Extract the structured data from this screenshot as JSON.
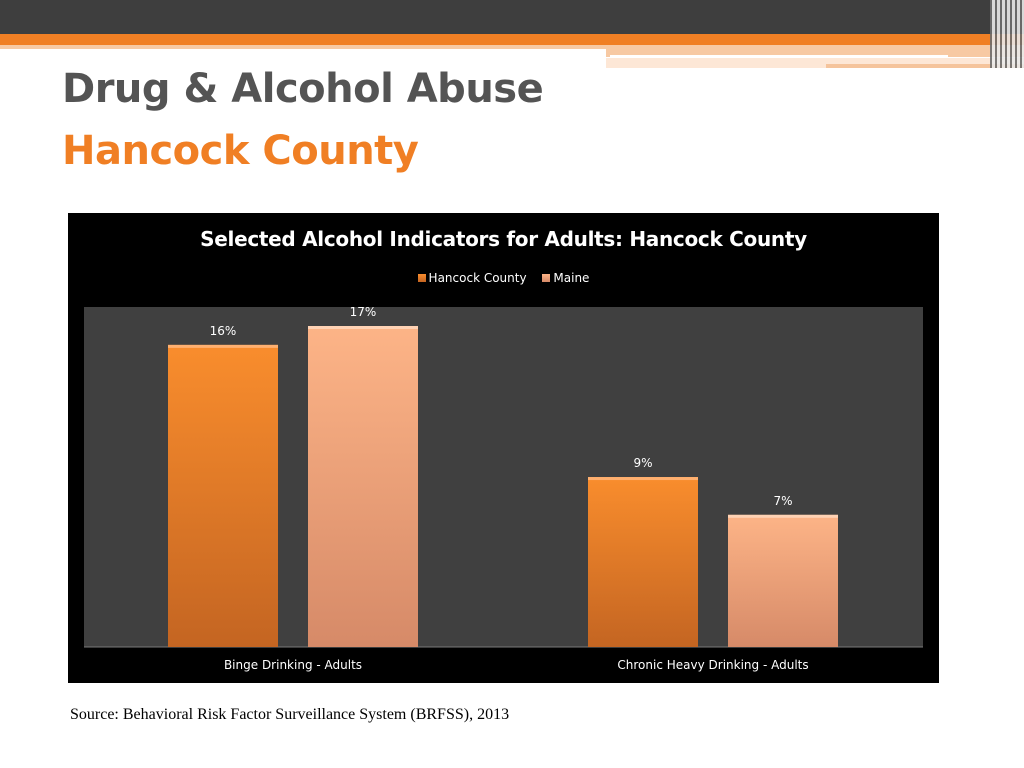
{
  "slide": {
    "title": "Drug & Alcohol Abuse",
    "subtitle": "Hancock County",
    "source": "Source: Behavioral Risk Factor Surveillance System  (BRFSS), 2013"
  },
  "colors": {
    "accent": "#f07f24",
    "header_bar": "#3e3e3e",
    "title_gray": "#545454",
    "plot_area": "#404040",
    "hancock": "#f18a2e",
    "maine": "#f7a574"
  },
  "chart_data": {
    "type": "bar",
    "title": "Selected Alcohol Indicators for Adults: Hancock County",
    "categories": [
      "Binge Drinking - Adults",
      "Chronic Heavy Drinking - Adults"
    ],
    "series": [
      {
        "name": "Hancock County",
        "values": [
          16,
          9
        ],
        "labels": [
          "16%",
          "9%"
        ],
        "color": "#f18a2e"
      },
      {
        "name": "Maine",
        "values": [
          17,
          7
        ],
        "labels": [
          "17%",
          "7%"
        ],
        "color": "#f7a574"
      }
    ],
    "ylim": [
      0,
      18
    ],
    "legend": "top",
    "grid": false
  }
}
